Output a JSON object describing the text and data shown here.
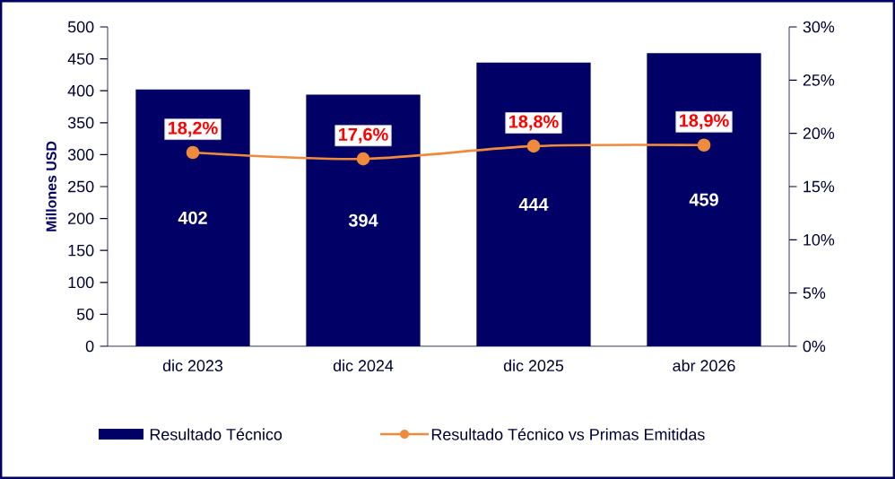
{
  "chart_data": {
    "type": "bar",
    "categories": [
      "dic 2023",
      "dic 2024",
      "dic 2025",
      "abr 2026"
    ],
    "ylabel": "Millones USD",
    "ylim": [
      0,
      500
    ],
    "yticks": [
      0,
      50,
      100,
      150,
      200,
      250,
      300,
      350,
      400,
      450,
      500
    ],
    "y2lim": [
      0,
      30
    ],
    "y2ticks": [
      {
        "value": 0,
        "label": "0%"
      },
      {
        "value": 5,
        "label": "5%"
      },
      {
        "value": 10,
        "label": "10%"
      },
      {
        "value": 15,
        "label": "15%"
      },
      {
        "value": 20,
        "label": "20%"
      },
      {
        "value": 25,
        "label": "25%"
      },
      {
        "value": 30,
        "label": "30%"
      }
    ],
    "legend": "bottom",
    "marker": "circle",
    "series": [
      {
        "name": "Resultado Técnico",
        "color": "#000066",
        "values": [
          402,
          394,
          444,
          459
        ],
        "value_labels": [
          "402",
          "394",
          "444",
          "459"
        ]
      },
      {
        "name": "Resultado Técnico vs Primas Emitidas",
        "type": "line",
        "axis": "y2",
        "color": "#f08a3c",
        "values": [
          18.2,
          17.6,
          18.8,
          18.9
        ],
        "value_labels": [
          "18,2%",
          "17,6%",
          "18,8%",
          "18,9%"
        ]
      }
    ]
  }
}
